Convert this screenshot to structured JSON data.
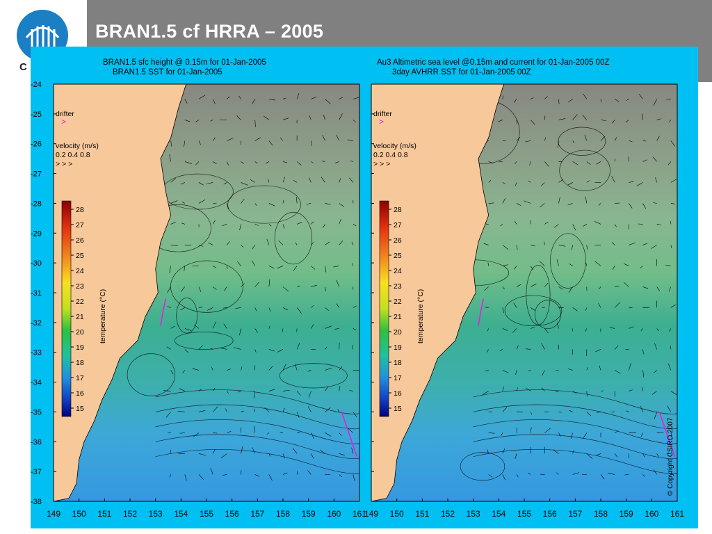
{
  "slide": {
    "title": "BRAN1.5 cf HRRA – 2005",
    "logo_letter": "C",
    "colors": {
      "header_bar": "#808080",
      "figure_bg": "#00bff2",
      "land": "#f7c89a",
      "logo": "#1a7fc4"
    }
  },
  "chart_data": [
    {
      "type": "heatmap",
      "title": "BRAN1.5 sfc height @ 0.15m for 01-Jan-2005",
      "subtitle": "BRAN1.5 SST for 01-Jan-2005",
      "x_ticks": [
        "149",
        "150",
        "151",
        "152",
        "153",
        "154",
        "155",
        "156",
        "157",
        "158",
        "159",
        "160",
        "161"
      ],
      "y_ticks": [
        "-24",
        "-25",
        "-26",
        "-27",
        "-28",
        "-29",
        "-30",
        "-31",
        "-32",
        "-33",
        "-34",
        "-35",
        "-36",
        "-37",
        "-38"
      ],
      "xlim": [
        149,
        161
      ],
      "ylim": [
        -38,
        -24
      ],
      "colorbar": {
        "label": "temperature (°C)",
        "ticks": [
          "28",
          "27",
          "26",
          "25",
          "24",
          "23",
          "22",
          "21",
          "20",
          "19",
          "18",
          "17",
          "16",
          "15"
        ],
        "range": [
          15,
          28
        ]
      },
      "legend": {
        "drifter_label": "drifter",
        "velocity_label": "velocity (m/s)",
        "velocity_values": "0.2 0.4 0.8"
      }
    },
    {
      "type": "heatmap",
      "title": "Au3 Altimetric sea level  @0.15m and current for 01-Jan-2005 00Z",
      "subtitle": "3day AVHRR SST for 01-Jan-2005 00Z",
      "x_ticks": [
        "149",
        "150",
        "151",
        "152",
        "153",
        "154",
        "155",
        "156",
        "157",
        "158",
        "159",
        "160",
        "161"
      ],
      "y_ticks": [
        "-24",
        "-25",
        "-26",
        "-27",
        "-28",
        "-29",
        "-30",
        "-31",
        "-32",
        "-33",
        "-34",
        "-35",
        "-36",
        "-37",
        "-38"
      ],
      "xlim": [
        149,
        161
      ],
      "ylim": [
        -38,
        -24
      ],
      "colorbar": {
        "label": "temperature (°C)",
        "ticks": [
          "28",
          "27",
          "26",
          "25",
          "24",
          "23",
          "22",
          "21",
          "20",
          "19",
          "18",
          "17",
          "16",
          "15"
        ],
        "range": [
          15,
          28
        ]
      },
      "legend": {
        "drifter_label": "drifter",
        "velocity_label": "velocity (m/s)",
        "velocity_values": "0.2 0.4 0.8"
      },
      "copyright": "© Copyright CSIRO 2007"
    }
  ]
}
